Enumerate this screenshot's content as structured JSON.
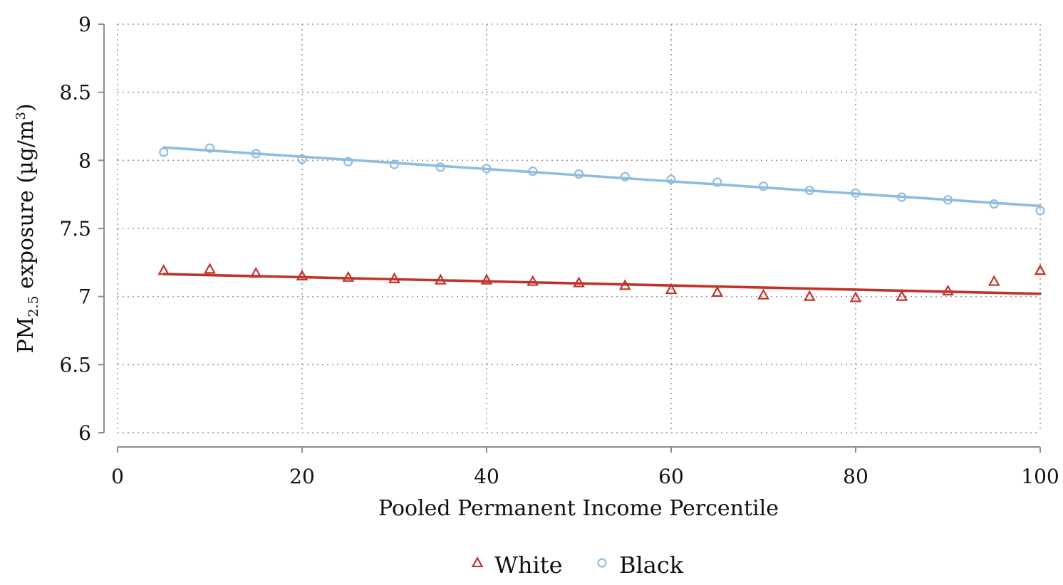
{
  "chart_data": {
    "type": "scatter",
    "title": "",
    "xlabel": "Pooled Permanent Income Percentile",
    "ylabel": {
      "prefix": "PM",
      "subscript": "2.5",
      "middle": " exposure (µg/m",
      "superscript": "3",
      "suffix": ")"
    },
    "xlim": [
      0,
      100
    ],
    "ylim": [
      6,
      9
    ],
    "x_ticks": [
      0,
      20,
      40,
      60,
      80,
      100
    ],
    "y_ticks": [
      6,
      6.5,
      7,
      7.5,
      8,
      8.5,
      9
    ],
    "y_tick_labels": [
      "6",
      "6.5",
      "7",
      "7.5",
      "8",
      "8.5",
      "9"
    ],
    "grid": true,
    "legend_position": "bottom-center",
    "series": [
      {
        "name": "White",
        "marker": "triangle",
        "color": "#c0332b",
        "x": [
          5,
          10,
          15,
          20,
          25,
          30,
          35,
          40,
          45,
          50,
          55,
          60,
          65,
          70,
          75,
          80,
          85,
          90,
          95,
          100
        ],
        "y": [
          7.19,
          7.2,
          7.17,
          7.15,
          7.14,
          7.13,
          7.12,
          7.12,
          7.11,
          7.1,
          7.08,
          7.05,
          7.03,
          7.01,
          7.0,
          6.99,
          7.0,
          7.04,
          7.11,
          7.19
        ],
        "fit": {
          "x": [
            5,
            100
          ],
          "y": [
            7.165,
            7.02
          ]
        }
      },
      {
        "name": "Black",
        "marker": "circle",
        "color": "#8fbde0",
        "x": [
          5,
          10,
          15,
          20,
          25,
          30,
          35,
          40,
          45,
          50,
          55,
          60,
          65,
          70,
          75,
          80,
          85,
          90,
          95,
          100
        ],
        "y": [
          8.06,
          8.09,
          8.05,
          8.01,
          7.99,
          7.97,
          7.95,
          7.94,
          7.92,
          7.9,
          7.88,
          7.86,
          7.84,
          7.81,
          7.78,
          7.76,
          7.73,
          7.71,
          7.68,
          7.63
        ],
        "fit": {
          "x": [
            5,
            100
          ],
          "y": [
            8.095,
            7.665
          ]
        }
      }
    ]
  }
}
